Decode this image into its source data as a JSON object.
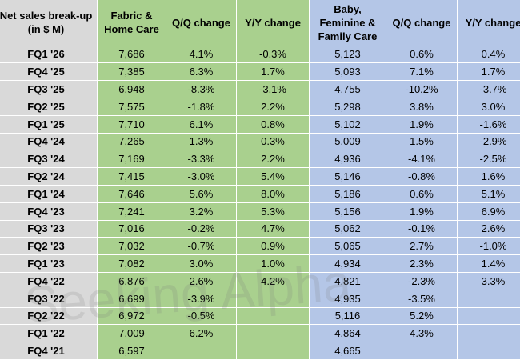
{
  "table": {
    "header": [
      [
        "Net sales break-up",
        "(in $ M)"
      ],
      [
        "Fabric &",
        "Home Care"
      ],
      [
        "Q/Q change"
      ],
      [
        "Y/Y change"
      ],
      [
        "Baby,",
        "Feminine &",
        "Family Care"
      ],
      [
        "Q/Q change"
      ],
      [
        "Y/Y change"
      ]
    ],
    "rows": [
      [
        "FQ1 '26",
        "7,686",
        "4.1%",
        "-0.3%",
        "5,123",
        "0.6%",
        "0.4%"
      ],
      [
        "FQ4 '25",
        "7,385",
        "6.3%",
        "1.7%",
        "5,093",
        "7.1%",
        "1.7%"
      ],
      [
        "FQ3 '25",
        "6,948",
        "-8.3%",
        "-3.1%",
        "4,755",
        "-10.2%",
        "-3.7%"
      ],
      [
        "FQ2 '25",
        "7,575",
        "-1.8%",
        "2.2%",
        "5,298",
        "3.8%",
        "3.0%"
      ],
      [
        "FQ1 '25",
        "7,710",
        "6.1%",
        "0.8%",
        "5,102",
        "1.9%",
        "-1.6%"
      ],
      [
        "FQ4 '24",
        "7,265",
        "1.3%",
        "0.3%",
        "5,009",
        "1.5%",
        "-2.9%"
      ],
      [
        "FQ3 '24",
        "7,169",
        "-3.3%",
        "2.2%",
        "4,936",
        "-4.1%",
        "-2.5%"
      ],
      [
        "FQ2 '24",
        "7,415",
        "-3.0%",
        "5.4%",
        "5,146",
        "-0.8%",
        "1.6%"
      ],
      [
        "FQ1 '24",
        "7,646",
        "5.6%",
        "8.0%",
        "5,186",
        "0.6%",
        "5.1%"
      ],
      [
        "FQ4 '23",
        "7,241",
        "3.2%",
        "5.3%",
        "5,156",
        "1.9%",
        "6.9%"
      ],
      [
        "FQ3 '23",
        "7,016",
        "-0.2%",
        "4.7%",
        "5,062",
        "-0.1%",
        "2.6%"
      ],
      [
        "FQ2 '23",
        "7,032",
        "-0.7%",
        "0.9%",
        "5,065",
        "2.7%",
        "-1.0%"
      ],
      [
        "FQ1 '23",
        "7,082",
        "3.0%",
        "1.0%",
        "4,934",
        "2.3%",
        "1.4%"
      ],
      [
        "FQ4 '22",
        "6,876",
        "2.6%",
        "4.2%",
        "4,821",
        "-2.3%",
        "3.3%"
      ],
      [
        "FQ3 '22",
        "6,699",
        "-3.9%",
        null,
        "4,935",
        "-3.5%",
        null
      ],
      [
        "FQ2 '22",
        "6,972",
        "-0.5%",
        null,
        "5,116",
        "5.2%",
        null
      ],
      [
        "FQ1 '22",
        "7,009",
        "6.2%",
        null,
        "4,864",
        "4.3%",
        null
      ],
      [
        "FQ4 '21",
        "6,597",
        null,
        null,
        "4,665",
        null,
        null
      ]
    ]
  },
  "watermark": "Seeking Alpha"
}
